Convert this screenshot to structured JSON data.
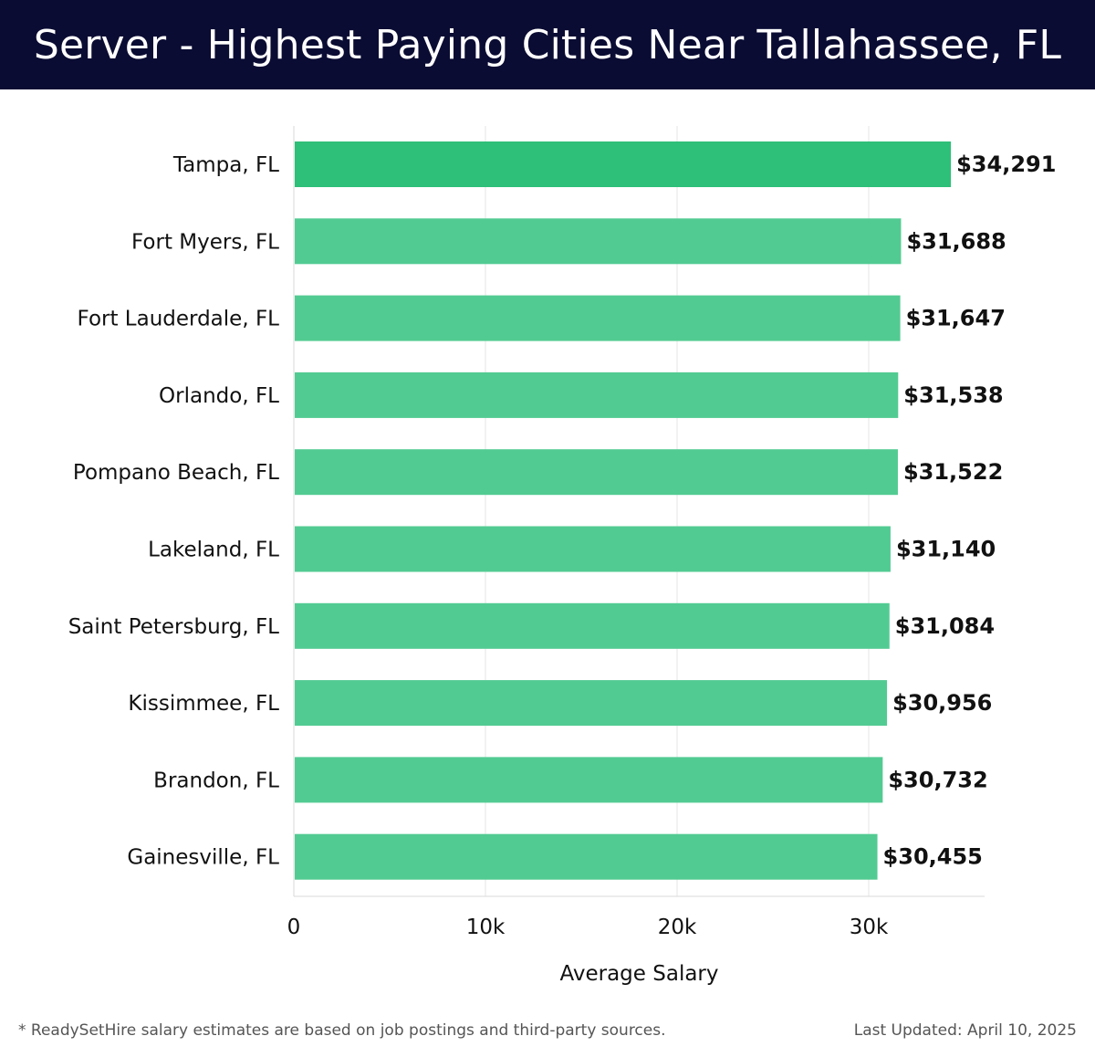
{
  "header": {
    "title": "Server - Highest Paying Cities Near Tallahassee, FL"
  },
  "chart_data": {
    "type": "bar",
    "orientation": "horizontal",
    "categories": [
      "Tampa, FL",
      "Fort Myers, FL",
      "Fort Lauderdale, FL",
      "Orlando, FL",
      "Pompano Beach, FL",
      "Lakeland, FL",
      "Saint Petersburg, FL",
      "Kissimmee, FL",
      "Brandon, FL",
      "Gainesville, FL"
    ],
    "values": [
      34291,
      31688,
      31647,
      31538,
      31522,
      31140,
      31084,
      30956,
      30732,
      30455
    ],
    "data_labels": [
      "$34,291",
      "$31,688",
      "$31,647",
      "$31,538",
      "$31,522",
      "$31,140",
      "$31,084",
      "$30,956",
      "$30,732",
      "$30,455"
    ],
    "xlabel": "Average Salary",
    "ylabel": "",
    "xlim": [
      0,
      36000
    ],
    "xticks": [
      0,
      10000,
      20000,
      30000
    ],
    "xtick_labels": [
      "0",
      "10k",
      "20k",
      "30k"
    ],
    "grid": "vertical",
    "colors": {
      "highlight": "#2ebf78",
      "bar": "#52cb92"
    }
  },
  "footer": {
    "note": "* ReadySetHire salary estimates are based on job postings and third-party sources.",
    "updated": "Last Updated: April 10, 2025"
  }
}
